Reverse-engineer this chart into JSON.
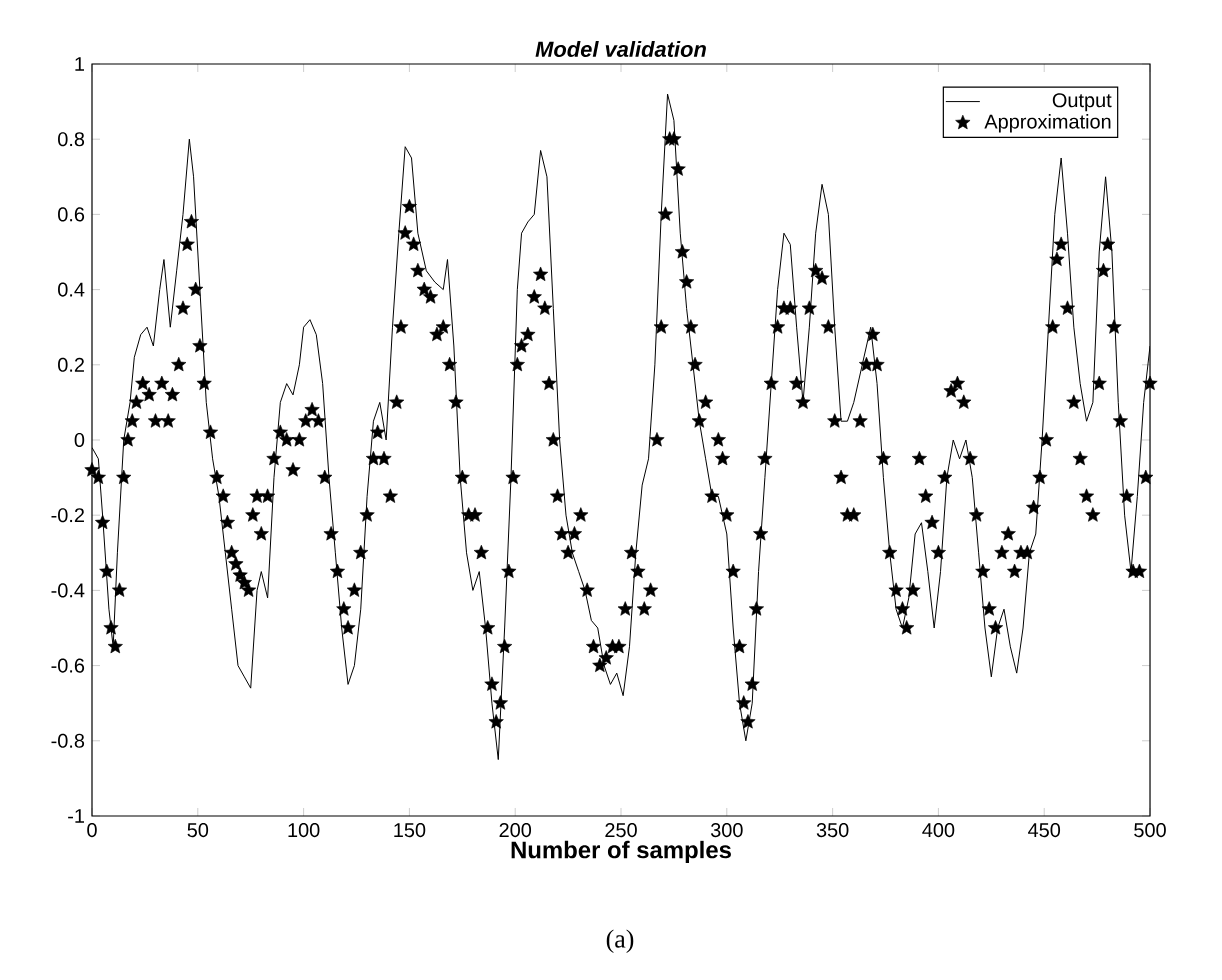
{
  "chart_data": {
    "type": "line",
    "title": "Model validation",
    "xlabel": "Number of samples",
    "annotations": [
      "(a)"
    ],
    "xlim": [
      0,
      500
    ],
    "ylim": [
      -1,
      1
    ],
    "xticks": [
      0,
      50,
      100,
      150,
      200,
      250,
      300,
      350,
      400,
      450,
      500
    ],
    "yticks": [
      -1,
      -0.8,
      -0.6,
      -0.4,
      -0.2,
      0,
      0.2,
      0.4,
      0.6,
      0.8,
      1
    ],
    "grid": false,
    "legend": "top right",
    "series": [
      {
        "name": "Output",
        "type": "line",
        "color": "#000000",
        "marker": "none",
        "line_style": "solid",
        "x": [
          0,
          3,
          5,
          8,
          10,
          12,
          15,
          18,
          20,
          23,
          26,
          29,
          32,
          34,
          37,
          40,
          43,
          46,
          48,
          51,
          54,
          57,
          60,
          63,
          66,
          69,
          72,
          75,
          78,
          80,
          83,
          86,
          89,
          92,
          95,
          98,
          100,
          103,
          106,
          109,
          112,
          115,
          118,
          121,
          124,
          127,
          130,
          133,
          136,
          139,
          142,
          145,
          148,
          151,
          154,
          158,
          162,
          166,
          168,
          171,
          174,
          177,
          180,
          183,
          186,
          189,
          192,
          195,
          198,
          201,
          203,
          206,
          209,
          212,
          215,
          218,
          221,
          224,
          227,
          230,
          233,
          236,
          239,
          242,
          245,
          248,
          251,
          254,
          257,
          260,
          263,
          266,
          269,
          272,
          275,
          278,
          281,
          284,
          287,
          290,
          293,
          296,
          300,
          303,
          306,
          309,
          312,
          315,
          318,
          321,
          324,
          327,
          330,
          333,
          336,
          339,
          342,
          345,
          348,
          351,
          354,
          357,
          360,
          364,
          368,
          371,
          374,
          377,
          380,
          383,
          386,
          389,
          392,
          395,
          398,
          401,
          404,
          407,
          410,
          413,
          416,
          419,
          422,
          425,
          428,
          431,
          434,
          437,
          440,
          443,
          446,
          449,
          452,
          455,
          458,
          461,
          464,
          467,
          470,
          473,
          476,
          479,
          482,
          485,
          488,
          491,
          494,
          497,
          500
        ],
        "values": [
          -0.02,
          -0.05,
          -0.2,
          -0.45,
          -0.55,
          -0.3,
          0.0,
          0.1,
          0.22,
          0.28,
          0.3,
          0.25,
          0.4,
          0.48,
          0.3,
          0.45,
          0.6,
          0.8,
          0.7,
          0.4,
          0.1,
          -0.05,
          -0.15,
          -0.3,
          -0.45,
          -0.6,
          -0.63,
          -0.66,
          -0.4,
          -0.35,
          -0.42,
          -0.1,
          0.1,
          0.15,
          0.12,
          0.2,
          0.3,
          0.32,
          0.28,
          0.15,
          -0.1,
          -0.3,
          -0.5,
          -0.65,
          -0.6,
          -0.45,
          -0.15,
          0.05,
          0.1,
          0.0,
          0.3,
          0.55,
          0.78,
          0.75,
          0.55,
          0.45,
          0.42,
          0.4,
          0.48,
          0.25,
          -0.1,
          -0.3,
          -0.4,
          -0.35,
          -0.5,
          -0.7,
          -0.85,
          -0.5,
          -0.1,
          0.4,
          0.55,
          0.58,
          0.6,
          0.77,
          0.7,
          0.35,
          0.0,
          -0.2,
          -0.3,
          -0.35,
          -0.4,
          -0.48,
          -0.5,
          -0.6,
          -0.65,
          -0.62,
          -0.68,
          -0.55,
          -0.3,
          -0.12,
          -0.05,
          0.2,
          0.6,
          0.92,
          0.85,
          0.55,
          0.35,
          0.2,
          0.05,
          -0.05,
          -0.15,
          -0.15,
          -0.25,
          -0.5,
          -0.7,
          -0.8,
          -0.7,
          -0.35,
          -0.1,
          0.15,
          0.4,
          0.55,
          0.52,
          0.3,
          0.1,
          0.3,
          0.55,
          0.68,
          0.6,
          0.3,
          0.05,
          0.05,
          0.1,
          0.2,
          0.3,
          0.15,
          -0.1,
          -0.3,
          -0.45,
          -0.5,
          -0.42,
          -0.25,
          -0.22,
          -0.35,
          -0.5,
          -0.35,
          -0.1,
          0.0,
          -0.05,
          0.0,
          -0.1,
          -0.3,
          -0.5,
          -0.63,
          -0.5,
          -0.45,
          -0.55,
          -0.62,
          -0.5,
          -0.3,
          -0.25,
          0.0,
          0.3,
          0.6,
          0.75,
          0.55,
          0.3,
          0.15,
          0.05,
          0.1,
          0.5,
          0.7,
          0.5,
          0.1,
          -0.2,
          -0.35,
          -0.15,
          0.1,
          0.25
        ]
      },
      {
        "name": "Approximation",
        "type": "scatter",
        "color": "#000000",
        "marker": "star",
        "x": [
          0,
          3,
          5,
          7,
          9,
          11,
          13,
          15,
          17,
          19,
          21,
          24,
          27,
          30,
          33,
          36,
          38,
          41,
          43,
          45,
          47,
          49,
          51,
          53,
          56,
          59,
          62,
          64,
          66,
          68,
          70,
          72,
          74,
          76,
          78,
          80,
          83,
          86,
          89,
          92,
          95,
          98,
          101,
          104,
          107,
          110,
          113,
          116,
          119,
          121,
          124,
          127,
          130,
          133,
          135,
          138,
          141,
          144,
          146,
          148,
          150,
          152,
          154,
          157,
          160,
          163,
          166,
          169,
          172,
          175,
          178,
          181,
          184,
          187,
          189,
          191,
          193,
          195,
          197,
          199,
          201,
          203,
          206,
          209,
          212,
          214,
          216,
          218,
          220,
          222,
          225,
          228,
          231,
          234,
          237,
          240,
          243,
          246,
          249,
          252,
          255,
          258,
          261,
          264,
          267,
          269,
          271,
          273,
          275,
          277,
          279,
          281,
          283,
          285,
          287,
          290,
          293,
          296,
          298,
          300,
          303,
          306,
          308,
          310,
          312,
          314,
          316,
          318,
          321,
          324,
          327,
          330,
          333,
          336,
          339,
          342,
          345,
          348,
          351,
          354,
          357,
          360,
          363,
          366,
          369,
          371,
          374,
          377,
          380,
          383,
          385,
          388,
          391,
          394,
          397,
          400,
          403,
          406,
          409,
          412,
          415,
          418,
          421,
          424,
          427,
          430,
          433,
          436,
          439,
          442,
          445,
          448,
          451,
          454,
          456,
          458,
          461,
          464,
          467,
          470,
          473,
          476,
          478,
          480,
          483,
          486,
          489,
          492,
          495,
          498,
          500
        ],
        "values": [
          -0.08,
          -0.1,
          -0.22,
          -0.35,
          -0.5,
          -0.55,
          -0.4,
          -0.1,
          0.0,
          0.05,
          0.1,
          0.15,
          0.12,
          0.05,
          0.15,
          0.05,
          0.12,
          0.2,
          0.35,
          0.52,
          0.58,
          0.4,
          0.25,
          0.15,
          0.02,
          -0.1,
          -0.15,
          -0.22,
          -0.3,
          -0.33,
          -0.36,
          -0.38,
          -0.4,
          -0.2,
          -0.15,
          -0.25,
          -0.15,
          -0.05,
          0.02,
          0.0,
          -0.08,
          0.0,
          0.05,
          0.08,
          0.05,
          -0.1,
          -0.25,
          -0.35,
          -0.45,
          -0.5,
          -0.4,
          -0.3,
          -0.2,
          -0.05,
          0.02,
          -0.05,
          -0.15,
          0.1,
          0.3,
          0.55,
          0.62,
          0.52,
          0.45,
          0.4,
          0.38,
          0.28,
          0.3,
          0.2,
          0.1,
          -0.1,
          -0.2,
          -0.2,
          -0.3,
          -0.5,
          -0.65,
          -0.75,
          -0.7,
          -0.55,
          -0.35,
          -0.1,
          0.2,
          0.25,
          0.28,
          0.38,
          0.44,
          0.35,
          0.15,
          0.0,
          -0.15,
          -0.25,
          -0.3,
          -0.25,
          -0.2,
          -0.4,
          -0.55,
          -0.6,
          -0.58,
          -0.55,
          -0.55,
          -0.45,
          -0.3,
          -0.35,
          -0.45,
          -0.4,
          0.0,
          0.3,
          0.6,
          0.8,
          0.8,
          0.72,
          0.5,
          0.42,
          0.3,
          0.2,
          0.05,
          0.1,
          -0.15,
          0.0,
          -0.05,
          -0.2,
          -0.35,
          -0.55,
          -0.7,
          -0.75,
          -0.65,
          -0.45,
          -0.25,
          -0.05,
          0.15,
          0.3,
          0.35,
          0.35,
          0.15,
          0.1,
          0.35,
          0.45,
          0.43,
          0.3,
          0.05,
          -0.1,
          -0.2,
          -0.2,
          0.05,
          0.2,
          0.28,
          0.2,
          -0.05,
          -0.3,
          -0.4,
          -0.45,
          -0.5,
          -0.4,
          -0.05,
          -0.15,
          -0.22,
          -0.3,
          -0.1,
          0.13,
          0.15,
          0.1,
          -0.05,
          -0.2,
          -0.35,
          -0.45,
          -0.5,
          -0.3,
          -0.25,
          -0.35,
          -0.3,
          -0.3,
          -0.18,
          -0.1,
          0.0,
          0.3,
          0.48,
          0.52,
          0.35,
          0.1,
          -0.05,
          -0.15,
          -0.2,
          0.15,
          0.45,
          0.52,
          0.3,
          0.05,
          -0.15,
          -0.35,
          -0.35,
          -0.1,
          0.15
        ]
      }
    ]
  }
}
